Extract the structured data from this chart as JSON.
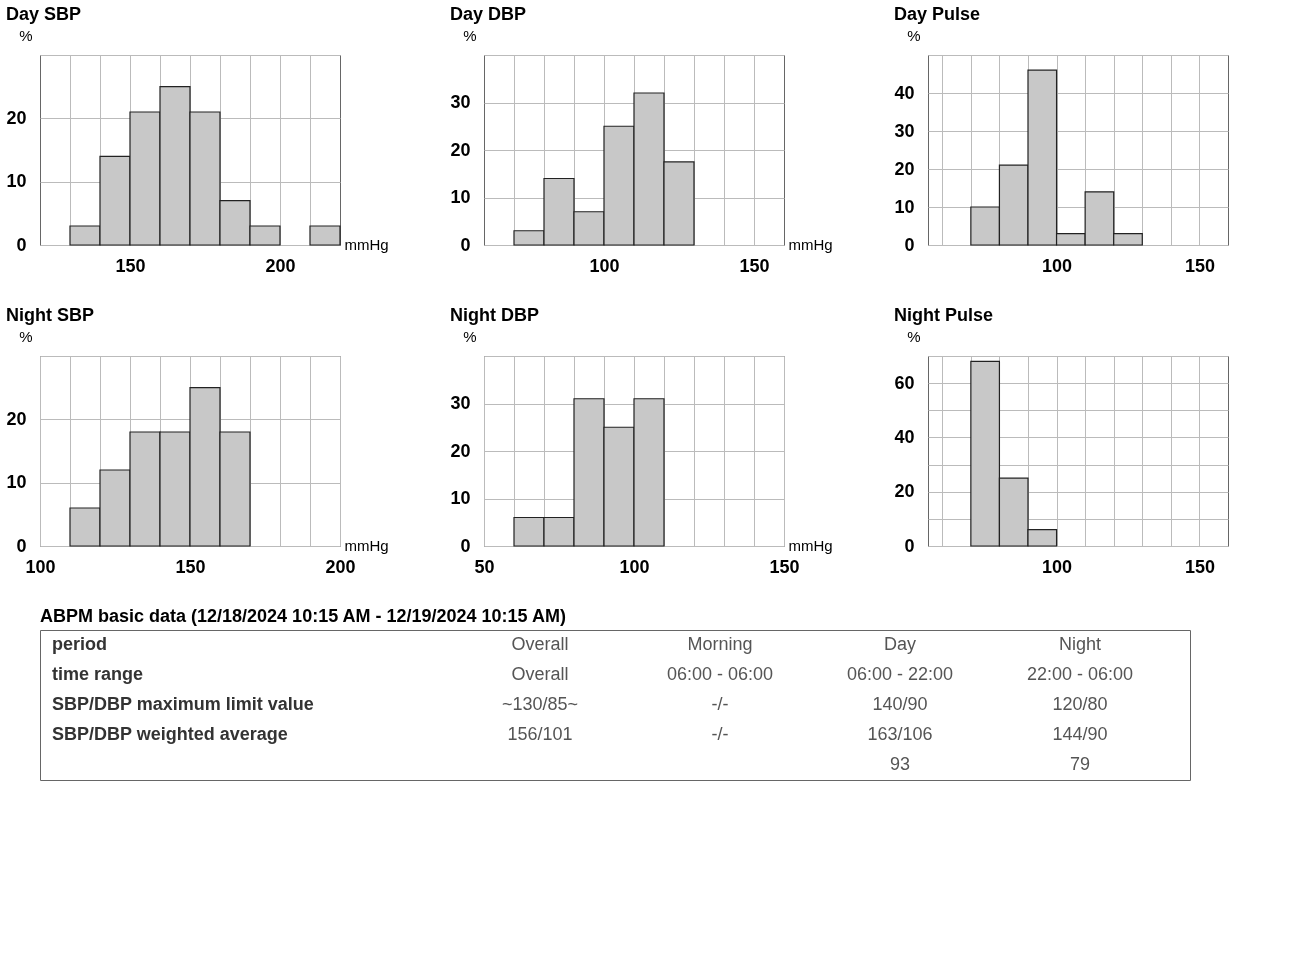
{
  "chart_data": [
    {
      "type": "histogram",
      "title": "Day  SBP",
      "xlabel": "mmHg",
      "ylabel": "%",
      "bins": [
        130,
        140,
        150,
        160,
        170,
        180,
        190,
        200,
        210,
        220
      ],
      "values": [
        3,
        14,
        21,
        25,
        21,
        7,
        3,
        null,
        3
      ],
      "color": "#c8c8c8",
      "xlim": [
        120,
        220
      ],
      "xticks": [
        {
          "value": 130,
          "label": null
        },
        {
          "value": 140,
          "label": null
        },
        150,
        {
          "value": 160,
          "label": null
        },
        {
          "value": 170,
          "label": null
        },
        {
          "value": 180,
          "label": null
        },
        {
          "value": 190,
          "label": null
        },
        200,
        {
          "value": 210,
          "label": null
        }
      ],
      "ylim": [
        0,
        30
      ],
      "yticks": [
        0,
        10,
        20,
        {
          "value": 30,
          "label": null
        }
      ],
      "grid": true
    },
    {
      "type": "histogram",
      "title": "Day  DBP",
      "xlabel": "mmHg",
      "ylabel": "%",
      "bins": [
        70,
        80,
        90,
        100,
        110,
        120,
        130
      ],
      "values": [
        3,
        14,
        7,
        25,
        32,
        17.5
      ],
      "color": "#c8c8c8",
      "xlim": [
        60,
        160
      ],
      "xticks": [
        {
          "value": 70,
          "label": null
        },
        {
          "value": 80,
          "label": null
        },
        {
          "value": 90,
          "label": null
        },
        100,
        {
          "value": 110,
          "label": null
        },
        {
          "value": 120,
          "label": null
        },
        {
          "value": 130,
          "label": null
        },
        {
          "value": 140,
          "label": null
        },
        150
      ],
      "ylim": [
        0,
        40
      ],
      "yticks": [
        0,
        10,
        20,
        30,
        {
          "value": 40,
          "label": null
        }
      ],
      "grid": true
    },
    {
      "type": "histogram",
      "title": "Day  Pulse",
      "ylabel": "%",
      "bins": [
        70,
        80,
        90,
        100,
        110,
        120,
        130
      ],
      "values": [
        10,
        21,
        46,
        3,
        14,
        3
      ],
      "color": "#c8c8c8",
      "xlim": [
        55,
        160
      ],
      "xticks": [
        {
          "value": 60,
          "label": null
        },
        {
          "value": 70,
          "label": null
        },
        {
          "value": 80,
          "label": null
        },
        {
          "value": 90,
          "label": null
        },
        100,
        {
          "value": 110,
          "label": null
        },
        {
          "value": 120,
          "label": null
        },
        {
          "value": 130,
          "label": null
        },
        {
          "value": 140,
          "label": null
        },
        150
      ],
      "ylim": [
        0,
        50
      ],
      "yticks": [
        0,
        10,
        20,
        30,
        40,
        {
          "value": 50,
          "label": null
        }
      ],
      "grid": true
    },
    {
      "type": "histogram",
      "title": "Night  SBP",
      "xlabel": "mmHg",
      "ylabel": "%",
      "bins": [
        110,
        120,
        130,
        140,
        150,
        160,
        170
      ],
      "values": [
        6,
        12,
        18,
        18,
        25,
        18
      ],
      "color": "#c8c8c8",
      "xlim": [
        100,
        200
      ],
      "xticks": [
        100,
        {
          "value": 110,
          "label": null
        },
        {
          "value": 120,
          "label": null
        },
        {
          "value": 130,
          "label": null
        },
        {
          "value": 140,
          "label": null
        },
        150,
        {
          "value": 160,
          "label": null
        },
        {
          "value": 170,
          "label": null
        },
        {
          "value": 180,
          "label": null
        },
        {
          "value": 190,
          "label": null
        },
        200
      ],
      "ylim": [
        0,
        30
      ],
      "yticks": [
        0,
        10,
        20,
        {
          "value": 30,
          "label": null
        }
      ],
      "grid": true
    },
    {
      "type": "histogram",
      "title": "Night  DBP",
      "xlabel": "mmHg",
      "ylabel": "%",
      "bins": [
        60,
        70,
        80,
        90,
        100,
        110
      ],
      "values": [
        6,
        6,
        31,
        25,
        31
      ],
      "color": "#c8c8c8",
      "xlim": [
        50,
        150
      ],
      "xticks": [
        50,
        {
          "value": 60,
          "label": null
        },
        {
          "value": 70,
          "label": null
        },
        {
          "value": 80,
          "label": null
        },
        {
          "value": 90,
          "label": null
        },
        100,
        {
          "value": 110,
          "label": null
        },
        {
          "value": 120,
          "label": null
        },
        {
          "value": 130,
          "label": null
        },
        {
          "value": 140,
          "label": null
        },
        150
      ],
      "ylim": [
        0,
        40
      ],
      "yticks": [
        0,
        10,
        20,
        30,
        {
          "value": 40,
          "label": null
        }
      ],
      "grid": true
    },
    {
      "type": "histogram",
      "title": "Night  Pulse",
      "ylabel": "%",
      "bins": [
        70,
        80,
        90,
        100
      ],
      "values": [
        68,
        25,
        6
      ],
      "color": "#c8c8c8",
      "xlim": [
        55,
        160
      ],
      "xticks": [
        {
          "value": 60,
          "label": null
        },
        {
          "value": 70,
          "label": null
        },
        {
          "value": 80,
          "label": null
        },
        {
          "value": 90,
          "label": null
        },
        100,
        {
          "value": 110,
          "label": null
        },
        {
          "value": 120,
          "label": null
        },
        {
          "value": 130,
          "label": null
        },
        {
          "value": 140,
          "label": null
        },
        150
      ],
      "ylim": [
        0,
        70
      ],
      "yticks": [
        0,
        {
          "value": 10,
          "label": null
        },
        20,
        {
          "value": 30,
          "label": null
        },
        40,
        {
          "value": 50,
          "label": null
        },
        60,
        {
          "value": 70,
          "label": null
        }
      ],
      "grid": true
    },
    {
      "type": "other",
      "title": "ABPM basic data  (12/18/2024 10:15 AM - 12/19/2024 10:15 AM)",
      "ylabel": "period",
      "categories": [
        "Overall",
        "Morning",
        "Day",
        "Night"
      ],
      "y_categories": [
        "time range",
        "SBP/DBP maximum limit value",
        "SBP/DBP weighted average",
        null
      ],
      "cell_labels": [
        [
          "Overall",
          "06:00 - 06:00",
          "06:00 - 22:00",
          "22:00 - 06:00"
        ],
        [
          "~130/85~",
          "-/-",
          "140/90",
          "120/80"
        ],
        [
          "156/101",
          "-/-",
          "163/106",
          "144/90"
        ],
        [
          null,
          null,
          "93",
          "79"
        ]
      ]
    }
  ]
}
